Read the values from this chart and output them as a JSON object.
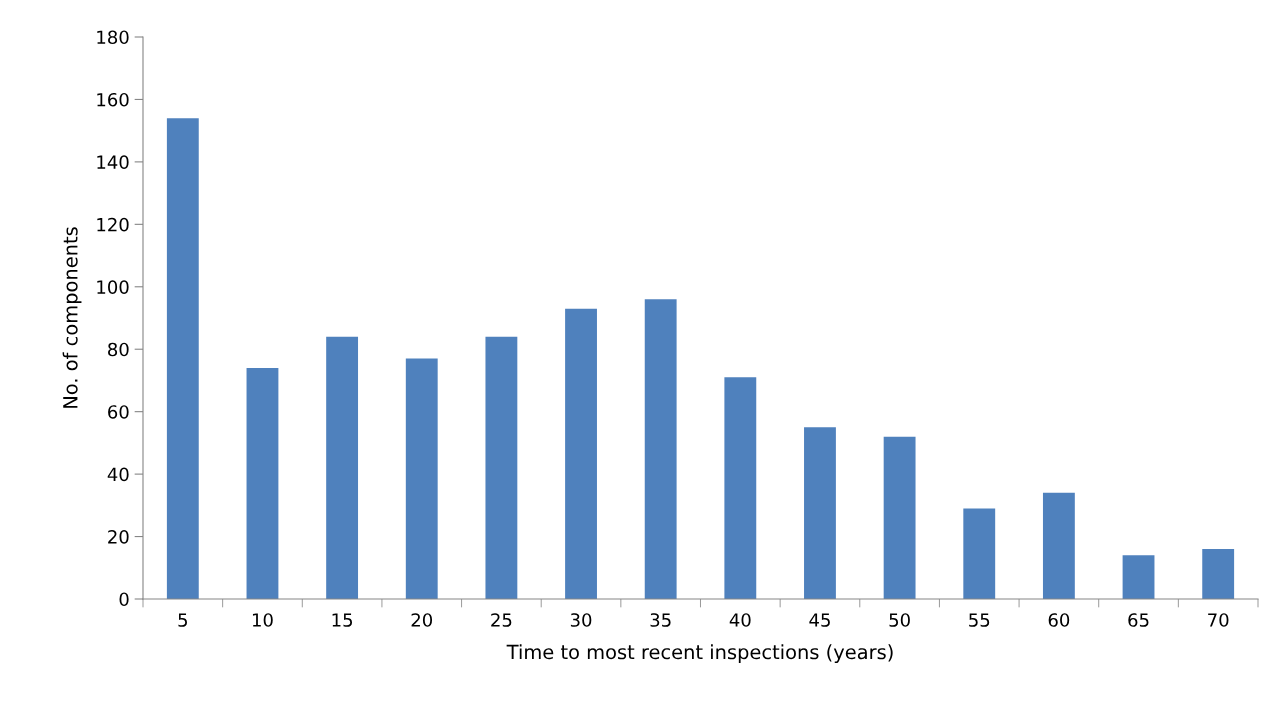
{
  "chart_data": {
    "type": "bar",
    "xlabel": "Time to most recent inspections (years)",
    "ylabel": "No. of components",
    "categories": [
      "5",
      "10",
      "15",
      "20",
      "25",
      "30",
      "35",
      "40",
      "45",
      "50",
      "55",
      "60",
      "65",
      "70"
    ],
    "values": [
      154,
      74,
      84,
      77,
      84,
      93,
      96,
      71,
      55,
      52,
      29,
      34,
      14,
      16
    ],
    "color": "#4f81bd",
    "ylim": [
      0,
      180
    ],
    "yticks": [
      0,
      20,
      40,
      60,
      80,
      100,
      120,
      140,
      160,
      180
    ],
    "grid": false,
    "legend": false
  }
}
